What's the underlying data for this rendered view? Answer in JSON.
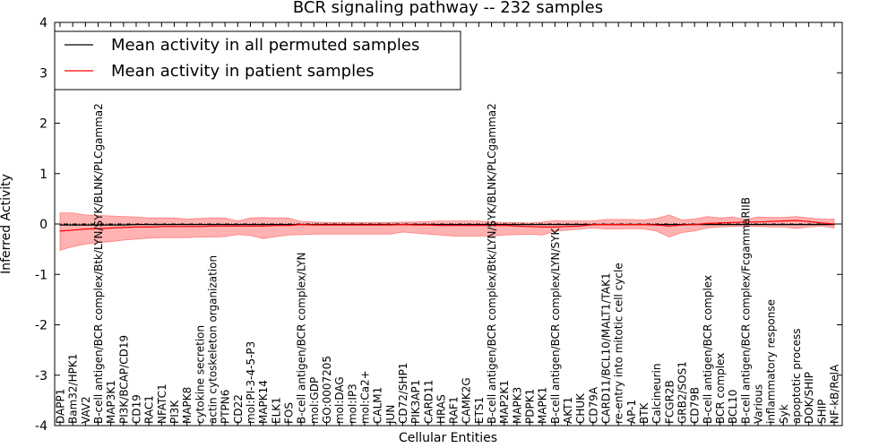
{
  "chart_data": {
    "type": "line",
    "title": "BCR signaling pathway -- 232 samples",
    "xlabel": "Cellular Entities",
    "ylabel": "Inferred Activity",
    "ylim": [
      -4,
      4
    ],
    "yticks": [
      -4,
      -3,
      -2,
      -1,
      0,
      1,
      2,
      3,
      4
    ],
    "grid": false,
    "legend_position": "top-left",
    "zero_line": {
      "y": 0,
      "style": "dash-dot"
    },
    "categories": [
      "DAPP1",
      "Bam32/HPK1",
      "VAV2",
      "B-cell antigen/BCR complex/Btk/LYN/SYK/BLNK/PLCgamma2",
      "MAP3K1",
      "PI3K/BCAP/CD19",
      "CD19",
      "RAC1",
      "NFATC1",
      "PI3K",
      "MAPK8",
      "cytokine secretion",
      "actin cytoskeleton organization",
      "PTPN6",
      "CD22",
      "mol:PI-3-4-5-P3",
      "MAPK14",
      "ELK1",
      "FOS",
      "B-cell antigen/BCR complex/LYN",
      "mol:GDP",
      "GO:0007205",
      "mol:DAG",
      "mol:IP3",
      "mol:Ca2+",
      "CALM1",
      "JUN",
      "CD72/SHP1",
      "PIK3AP1",
      "CARD11",
      "HRAS",
      "RAF1",
      "CAMK2G",
      "ETS1",
      "B-cell antigen/BCR complex/Btk/LYN/SYK/BLNK/PLCgamma2",
      "MAP2K1",
      "MAPK3",
      "PDPK1",
      "MAPK1",
      "B-cell antigen/BCR complex/LYN/SYK",
      "AKT1",
      "CHUK",
      "CD79A",
      "CARD11/BCL10/MALT1/TAK1",
      "re-entry into mitotic cell cycle",
      "AP-1",
      "BTK",
      "Calcineurin",
      "FCGR2B",
      "GRB2/SOS1",
      "CD79B",
      "B-cell antigen/BCR complex",
      "BCR complex",
      "BCL10",
      "B-cell antigen/BCR complex/FcgammaRIIB",
      "Various",
      "inflammatory response",
      "Syk",
      "apoptotic process",
      "DOK/SHIP",
      "SHIP",
      "NF-kB/RelA"
    ],
    "series": [
      {
        "name": "Mean activity in all permuted samples",
        "color": "#000000",
        "values": [
          -0.02,
          -0.02,
          -0.02,
          -0.02,
          -0.02,
          -0.02,
          -0.01,
          -0.01,
          -0.01,
          -0.01,
          -0.01,
          -0.01,
          -0.01,
          -0.01,
          -0.01,
          -0.01,
          -0.01,
          -0.01,
          -0.01,
          -0.01,
          -0.01,
          -0.01,
          -0.01,
          -0.01,
          -0.01,
          -0.01,
          -0.01,
          -0.01,
          -0.01,
          -0.01,
          -0.01,
          -0.01,
          -0.01,
          -0.01,
          -0.01,
          -0.01,
          -0.01,
          -0.01,
          -0.01,
          -0.01,
          -0.01,
          -0.01,
          -0.01,
          -0.01,
          -0.01,
          -0.01,
          -0.01,
          -0.01,
          -0.01,
          -0.01,
          -0.01,
          -0.01,
          -0.01,
          -0.01,
          -0.01,
          -0.01,
          -0.01,
          -0.01,
          -0.01,
          -0.01,
          -0.01,
          -0.01
        ]
      },
      {
        "name": "Mean activity in patient samples",
        "color": "#ff0000",
        "values": [
          -0.14,
          -0.12,
          -0.1,
          -0.09,
          -0.08,
          -0.07,
          -0.06,
          -0.06,
          -0.05,
          -0.05,
          -0.05,
          -0.05,
          -0.04,
          -0.04,
          -0.04,
          -0.04,
          -0.04,
          -0.03,
          -0.03,
          -0.01,
          -0.02,
          -0.02,
          -0.02,
          -0.02,
          -0.02,
          -0.02,
          -0.02,
          -0.01,
          -0.02,
          -0.02,
          -0.03,
          -0.03,
          -0.03,
          -0.03,
          -0.03,
          -0.03,
          -0.04,
          -0.05,
          -0.06,
          -0.06,
          -0.05,
          -0.04,
          -0.01,
          -0.01,
          -0.01,
          -0.01,
          -0.01,
          -0.02,
          -0.04,
          -0.02,
          -0.01,
          0.01,
          0.02,
          0.03,
          0.04,
          0.04,
          0.05,
          0.06,
          0.07,
          0.05,
          0.02,
          0.0
        ]
      }
    ],
    "band": {
      "upper": [
        0.22,
        0.22,
        0.18,
        0.17,
        0.16,
        0.15,
        0.14,
        0.12,
        0.12,
        0.12,
        0.1,
        0.11,
        0.12,
        0.12,
        0.06,
        0.12,
        0.13,
        0.12,
        0.12,
        0.05,
        0.04,
        0.03,
        0.03,
        0.03,
        0.03,
        0.03,
        0.03,
        0.04,
        0.04,
        0.05,
        0.06,
        0.06,
        0.06,
        0.06,
        0.04,
        0.03,
        0.03,
        0.02,
        0.04,
        0.07,
        0.06,
        0.06,
        0.06,
        0.09,
        0.09,
        0.09,
        0.08,
        0.11,
        0.18,
        0.08,
        0.1,
        0.15,
        0.12,
        0.14,
        0.09,
        0.14,
        0.13,
        0.13,
        0.15,
        0.12,
        0.1,
        0.1
      ],
      "lower": [
        -0.52,
        -0.45,
        -0.4,
        -0.37,
        -0.35,
        -0.32,
        -0.3,
        -0.28,
        -0.27,
        -0.27,
        -0.27,
        -0.26,
        -0.26,
        -0.25,
        -0.21,
        -0.23,
        -0.29,
        -0.25,
        -0.22,
        -0.21,
        -0.2,
        -0.2,
        -0.2,
        -0.2,
        -0.2,
        -0.2,
        -0.2,
        -0.16,
        -0.18,
        -0.2,
        -0.22,
        -0.24,
        -0.24,
        -0.24,
        -0.24,
        -0.22,
        -0.21,
        -0.2,
        -0.22,
        -0.14,
        -0.12,
        -0.1,
        -0.08,
        -0.1,
        -0.1,
        -0.09,
        -0.1,
        -0.14,
        -0.26,
        -0.17,
        -0.14,
        -0.08,
        -0.06,
        -0.05,
        -0.04,
        -0.05,
        -0.06,
        -0.06,
        -0.09,
        -0.06,
        -0.04,
        -0.08
      ]
    }
  }
}
